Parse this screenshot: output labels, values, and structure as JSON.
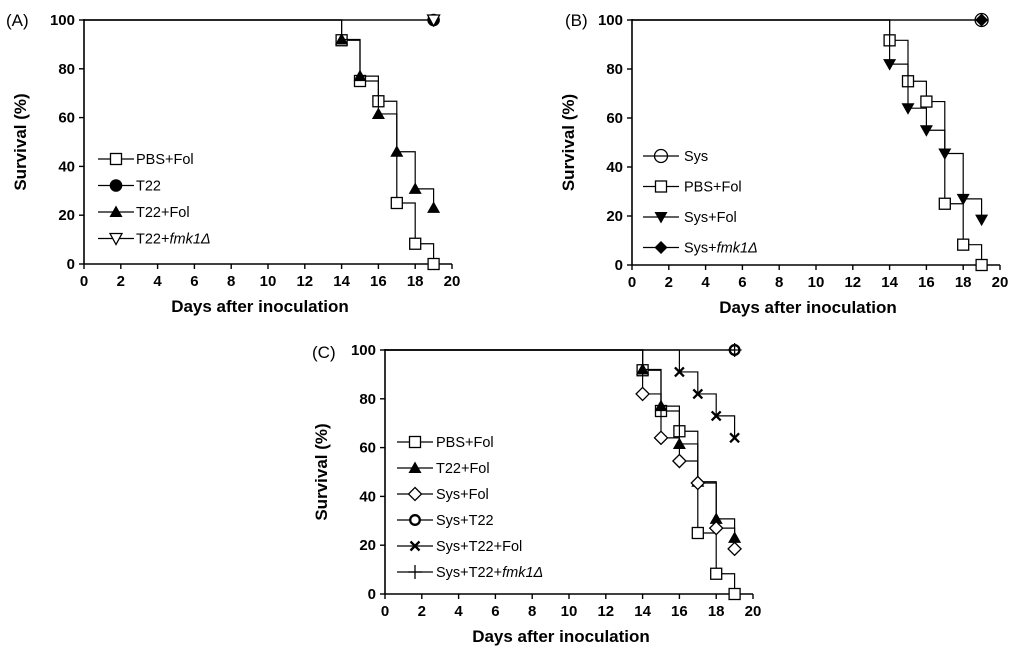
{
  "chart_data": [
    {
      "type": "line",
      "id": "A",
      "panel_label": "(A)",
      "xlabel": "Days after inoculation",
      "ylabel": "Survival (%)",
      "xlim": [
        0,
        20
      ],
      "ylim": [
        0,
        100
      ],
      "x_ticks": [
        0,
        2,
        4,
        6,
        8,
        10,
        12,
        14,
        16,
        18,
        20
      ],
      "y_ticks": [
        0,
        20,
        40,
        60,
        80,
        100
      ],
      "legend_position": "lower-left",
      "series": [
        {
          "name": "PBS+Fol",
          "marker": "square-open",
          "x": [
            0,
            14,
            15,
            16,
            17,
            18,
            19
          ],
          "y": [
            100,
            91.7,
            75,
            66.7,
            25,
            8.3,
            0
          ]
        },
        {
          "name": "T22",
          "marker": "circle-filled",
          "x": [
            0,
            19
          ],
          "y": [
            100,
            100
          ]
        },
        {
          "name": "T22+Fol",
          "marker": "triangle-up-filled",
          "x": [
            0,
            14,
            15,
            16,
            17,
            18,
            19
          ],
          "y": [
            100,
            92,
            77,
            61.5,
            46,
            30.8,
            23
          ]
        },
        {
          "name": "T22+",
          "name_italic": "fmk1Δ",
          "marker": "triangle-down-open",
          "x": [
            0,
            19
          ],
          "y": [
            100,
            100
          ]
        }
      ]
    },
    {
      "type": "line",
      "id": "B",
      "panel_label": "(B)",
      "xlabel": "Days after inoculation",
      "ylabel": "Survival (%)",
      "xlim": [
        0,
        20
      ],
      "ylim": [
        0,
        100
      ],
      "x_ticks": [
        0,
        2,
        4,
        6,
        8,
        10,
        12,
        14,
        16,
        18,
        20
      ],
      "y_ticks": [
        0,
        20,
        40,
        60,
        80,
        100
      ],
      "legend_position": "lower-left",
      "series": [
        {
          "name": "Sys",
          "marker": "circle-open",
          "x": [
            0,
            19
          ],
          "y": [
            100,
            100
          ]
        },
        {
          "name": "PBS+Fol",
          "marker": "square-open",
          "x": [
            0,
            14,
            15,
            16,
            17,
            18,
            19
          ],
          "y": [
            100,
            91.7,
            75,
            66.7,
            25,
            8.3,
            0
          ]
        },
        {
          "name": "Sys+Fol",
          "marker": "triangle-down-filled",
          "x": [
            0,
            14,
            15,
            16,
            17,
            18,
            19
          ],
          "y": [
            100,
            82,
            64,
            55,
            45.5,
            27,
            18.5
          ]
        },
        {
          "name": "Sys+",
          "name_italic": "fmk1Δ",
          "marker": "diamond-filled",
          "x": [
            0,
            19
          ],
          "y": [
            100,
            100
          ]
        }
      ]
    },
    {
      "type": "line",
      "id": "C",
      "panel_label": "(C)",
      "xlabel": "Days after inoculation",
      "ylabel": "Survival (%)",
      "xlim": [
        0,
        20
      ],
      "ylim": [
        0,
        100
      ],
      "x_ticks": [
        0,
        2,
        4,
        6,
        8,
        10,
        12,
        14,
        16,
        18,
        20
      ],
      "y_ticks": [
        0,
        20,
        40,
        60,
        80,
        100
      ],
      "legend_position": "lower-left",
      "series": [
        {
          "name": "PBS+Fol",
          "marker": "square-open",
          "x": [
            0,
            14,
            15,
            16,
            17,
            18,
            19
          ],
          "y": [
            100,
            91.7,
            75,
            66.7,
            25,
            8.3,
            0
          ]
        },
        {
          "name": "T22+Fol",
          "marker": "triangle-up-filled",
          "x": [
            0,
            14,
            15,
            16,
            17,
            18,
            19
          ],
          "y": [
            100,
            92,
            77,
            61.5,
            46,
            30.8,
            23
          ]
        },
        {
          "name": "Sys+Fol",
          "marker": "diamond-open",
          "x": [
            0,
            14,
            15,
            16,
            17,
            18,
            19
          ],
          "y": [
            100,
            82,
            64,
            54.5,
            45.5,
            27,
            18.5
          ]
        },
        {
          "name": "Sys+T22",
          "marker": "circle-open-thick",
          "x": [
            0,
            19
          ],
          "y": [
            100,
            100
          ]
        },
        {
          "name": "Sys+T22+Fol",
          "marker": "x",
          "x": [
            0,
            16,
            17,
            18,
            19
          ],
          "y": [
            100,
            91,
            82,
            73,
            64
          ]
        },
        {
          "name": "Sys+T22+",
          "name_italic": "fmk1Δ",
          "marker": "plus",
          "x": [
            0,
            19
          ],
          "y": [
            100,
            100
          ]
        }
      ]
    }
  ]
}
